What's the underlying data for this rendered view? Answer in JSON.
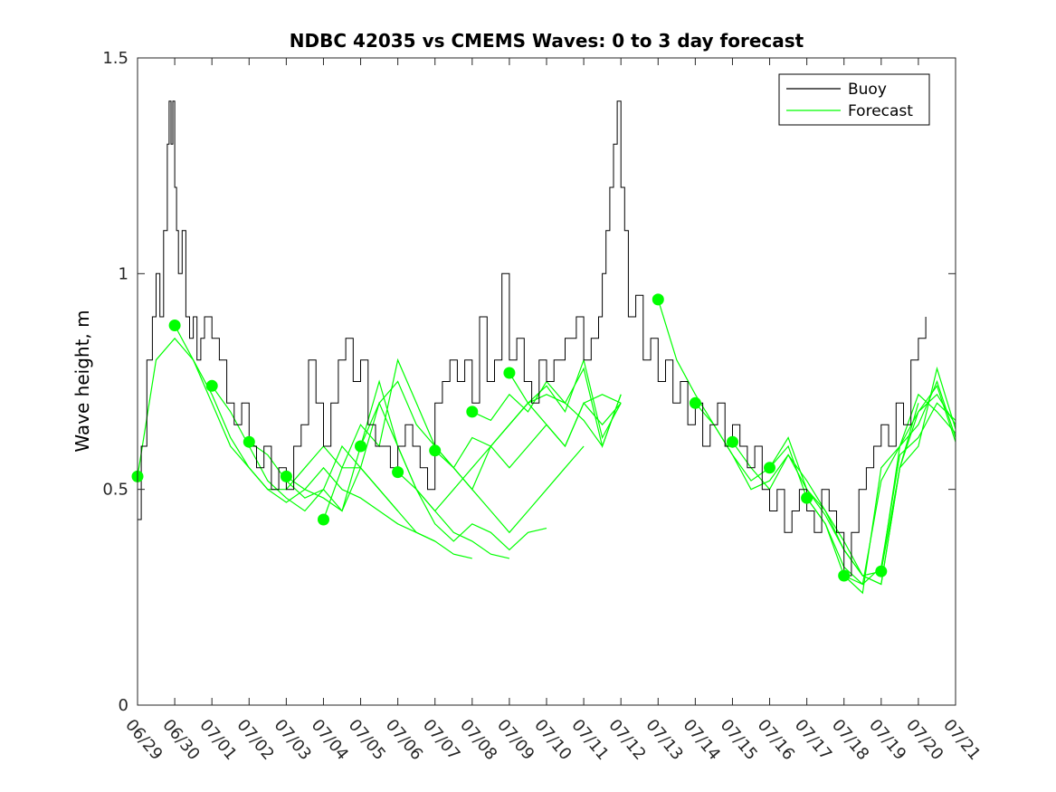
{
  "chart_data": {
    "type": "line",
    "title": "NDBC 42035 vs CMEMS Waves: 0 to 3 day forecast",
    "xlabel": "",
    "ylabel": "Wave height, m",
    "ylim": [
      0,
      1.5
    ],
    "xlim_days": [
      0,
      22
    ],
    "x_tick_labels": [
      "06/29",
      "06/30",
      "07/01",
      "07/02",
      "07/03",
      "07/04",
      "07/05",
      "07/06",
      "07/07",
      "07/08",
      "07/09",
      "07/10",
      "07/11",
      "07/12",
      "07/13",
      "07/14",
      "07/15",
      "07/16",
      "07/17",
      "07/18",
      "07/19",
      "07/20",
      "07/21"
    ],
    "y_ticks": [
      0,
      0.5,
      1,
      1.5
    ],
    "y_tick_labels": [
      "0",
      "0.5",
      "1",
      "1.5"
    ],
    "legend_position": "top-right",
    "colors": {
      "buoy": "#000000",
      "forecast": "#00ff00"
    },
    "series": [
      {
        "name": "Buoy",
        "x": [
          0,
          0.1,
          0.25,
          0.4,
          0.5,
          0.6,
          0.7,
          0.8,
          0.85,
          0.9,
          0.95,
          1.0,
          1.05,
          1.1,
          1.2,
          1.3,
          1.4,
          1.5,
          1.6,
          1.7,
          1.8,
          2.0,
          2.2,
          2.4,
          2.6,
          2.8,
          3.0,
          3.2,
          3.4,
          3.6,
          3.8,
          4.0,
          4.2,
          4.4,
          4.6,
          4.8,
          5.0,
          5.2,
          5.4,
          5.6,
          5.8,
          6.0,
          6.2,
          6.4,
          6.6,
          6.8,
          7.0,
          7.2,
          7.4,
          7.6,
          7.8,
          8.0,
          8.2,
          8.4,
          8.6,
          8.8,
          9.0,
          9.2,
          9.4,
          9.6,
          9.8,
          10.0,
          10.2,
          10.4,
          10.6,
          10.8,
          11.0,
          11.2,
          11.5,
          11.8,
          12.0,
          12.2,
          12.4,
          12.5,
          12.6,
          12.7,
          12.8,
          12.9,
          13.0,
          13.1,
          13.2,
          13.4,
          13.6,
          13.8,
          14.0,
          14.2,
          14.4,
          14.6,
          14.8,
          15.0,
          15.2,
          15.4,
          15.6,
          15.8,
          16.0,
          16.2,
          16.4,
          16.6,
          16.8,
          17.0,
          17.2,
          17.4,
          17.6,
          17.8,
          18.0,
          18.2,
          18.4,
          18.6,
          18.8,
          19.0,
          19.2,
          19.4,
          19.6,
          19.8,
          20.0,
          20.2,
          20.4,
          20.6,
          20.8,
          21.0,
          21.2
        ],
        "y": [
          0.43,
          0.6,
          0.8,
          0.9,
          1.0,
          0.9,
          1.1,
          1.3,
          1.4,
          1.3,
          1.4,
          1.2,
          1.1,
          1.0,
          1.1,
          0.9,
          0.85,
          0.9,
          0.8,
          0.85,
          0.9,
          0.85,
          0.8,
          0.7,
          0.65,
          0.7,
          0.6,
          0.55,
          0.6,
          0.5,
          0.55,
          0.5,
          0.6,
          0.65,
          0.8,
          0.7,
          0.6,
          0.7,
          0.8,
          0.85,
          0.75,
          0.8,
          0.65,
          0.6,
          0.6,
          0.55,
          0.6,
          0.65,
          0.6,
          0.55,
          0.5,
          0.7,
          0.75,
          0.8,
          0.75,
          0.8,
          0.7,
          0.9,
          0.75,
          0.8,
          1.0,
          0.8,
          0.85,
          0.75,
          0.7,
          0.8,
          0.75,
          0.8,
          0.85,
          0.9,
          0.8,
          0.85,
          0.9,
          1.0,
          1.1,
          1.2,
          1.3,
          1.4,
          1.2,
          1.1,
          0.9,
          0.95,
          0.8,
          0.85,
          0.75,
          0.8,
          0.7,
          0.75,
          0.65,
          0.7,
          0.6,
          0.65,
          0.7,
          0.6,
          0.65,
          0.6,
          0.55,
          0.6,
          0.5,
          0.45,
          0.5,
          0.4,
          0.45,
          0.5,
          0.45,
          0.4,
          0.5,
          0.45,
          0.4,
          0.3,
          0.4,
          0.5,
          0.55,
          0.6,
          0.65,
          0.6,
          0.7,
          0.65,
          0.8,
          0.85,
          0.9
        ]
      }
    ],
    "forecast_runs": [
      {
        "x": [
          0,
          0.5,
          1.0,
          1.5,
          2.0,
          2.5,
          3.0,
          3.5,
          4.0,
          4.5,
          5.0,
          5.5,
          6.0,
          6.5,
          7.0
        ],
        "y": [
          0.53,
          0.8,
          0.85,
          0.8,
          0.7,
          0.6,
          0.55,
          0.5,
          0.5,
          0.55,
          0.6,
          0.55,
          0.55,
          0.5,
          0.45
        ]
      },
      {
        "x": [
          1.0,
          1.5,
          2.0,
          2.5,
          3.0,
          3.5,
          4.0,
          4.5,
          5.0,
          5.5,
          6.0,
          6.5,
          7.0,
          7.5,
          8.0
        ],
        "y": [
          0.88,
          0.8,
          0.72,
          0.62,
          0.55,
          0.5,
          0.47,
          0.5,
          0.55,
          0.5,
          0.48,
          0.45,
          0.42,
          0.4,
          0.38
        ]
      },
      {
        "x": [
          2.0,
          2.5,
          3.0,
          3.5,
          4.0,
          4.5,
          5.0,
          5.5,
          6.0,
          6.5,
          7.0,
          7.5,
          8.0,
          8.5,
          9.0
        ],
        "y": [
          0.74,
          0.68,
          0.6,
          0.52,
          0.48,
          0.45,
          0.5,
          0.6,
          0.55,
          0.5,
          0.45,
          0.4,
          0.38,
          0.35,
          0.34
        ]
      },
      {
        "x": [
          3.0,
          3.5,
          4.0,
          4.5,
          5.0,
          5.5,
          6.0,
          6.5,
          7.0,
          7.5,
          8.0,
          8.5,
          9.0,
          9.5,
          10.0
        ],
        "y": [
          0.61,
          0.58,
          0.52,
          0.48,
          0.5,
          0.45,
          0.55,
          0.7,
          0.6,
          0.5,
          0.45,
          0.4,
          0.38,
          0.35,
          0.34
        ]
      },
      {
        "x": [
          4.0,
          4.5,
          5.0,
          5.5,
          6.0,
          6.5,
          7.0,
          7.5,
          8.0,
          8.5,
          9.0,
          9.5,
          10.0,
          10.5,
          11.0
        ],
        "y": [
          0.53,
          0.5,
          0.48,
          0.45,
          0.6,
          0.75,
          0.6,
          0.5,
          0.42,
          0.38,
          0.42,
          0.4,
          0.36,
          0.4,
          0.41
        ]
      },
      {
        "x": [
          5.0,
          5.5,
          6.0,
          6.5,
          7.0,
          7.5,
          8.0,
          8.5,
          9.0,
          9.5,
          10.0,
          10.5,
          11.0,
          11.5,
          12.0
        ],
        "y": [
          0.43,
          0.55,
          0.65,
          0.6,
          0.8,
          0.7,
          0.6,
          0.55,
          0.5,
          0.45,
          0.4,
          0.45,
          0.5,
          0.55,
          0.6
        ]
      },
      {
        "x": [
          6.0,
          6.5,
          7.0,
          7.5,
          8.0,
          8.5,
          9.0,
          9.5,
          10.0,
          10.5,
          11.0,
          11.5,
          12.0,
          12.5,
          13.0
        ],
        "y": [
          0.6,
          0.7,
          0.75,
          0.65,
          0.6,
          0.55,
          0.5,
          0.6,
          0.55,
          0.6,
          0.65,
          0.6,
          0.7,
          0.65,
          0.7
        ]
      },
      {
        "x": [
          7.0,
          7.5,
          8.0,
          8.5,
          9.0,
          9.5,
          10.0,
          10.5,
          11.0,
          11.5,
          12.0,
          12.5,
          13.0
        ],
        "y": [
          0.54,
          0.5,
          0.45,
          0.5,
          0.55,
          0.6,
          0.65,
          0.7,
          0.65,
          0.6,
          0.7,
          0.72,
          0.7
        ]
      },
      {
        "x": [
          8.0,
          8.5,
          9.0,
          9.5,
          10.0,
          10.5,
          11.0,
          11.5,
          12.0,
          12.5,
          13.0
        ],
        "y": [
          0.59,
          0.55,
          0.62,
          0.6,
          0.65,
          0.7,
          0.72,
          0.7,
          0.66,
          0.6,
          0.72
        ]
      },
      {
        "x": [
          9.0,
          9.5,
          10.0,
          10.5,
          11.0,
          11.5,
          12.0,
          12.5,
          13.0
        ],
        "y": [
          0.68,
          0.66,
          0.72,
          0.68,
          0.75,
          0.7,
          0.78,
          0.6,
          0.72
        ]
      },
      {
        "x": [
          10.0,
          10.5,
          11.0,
          11.5,
          12.0,
          12.5,
          13.0
        ],
        "y": [
          0.77,
          0.7,
          0.74,
          0.68,
          0.8,
          0.62,
          0.7
        ]
      },
      {
        "x": [
          14.0,
          14.5,
          15.0,
          15.5,
          16.0,
          16.5,
          17.0,
          17.5,
          18.0,
          18.5,
          19.0,
          19.5,
          20.0,
          20.5,
          21.0
        ],
        "y": [
          0.94,
          0.8,
          0.72,
          0.65,
          0.58,
          0.52,
          0.55,
          0.62,
          0.5,
          0.45,
          0.38,
          0.3,
          0.28,
          0.55,
          0.7
        ]
      },
      {
        "x": [
          15.0,
          15.5,
          16.0,
          16.5,
          17.0,
          17.5,
          18.0,
          18.5,
          19.0,
          19.5,
          20.0,
          20.5,
          21.0,
          21.5,
          22.0
        ],
        "y": [
          0.7,
          0.65,
          0.58,
          0.5,
          0.52,
          0.58,
          0.5,
          0.44,
          0.36,
          0.3,
          0.28,
          0.55,
          0.68,
          0.72,
          0.65
        ]
      },
      {
        "x": [
          16.0,
          16.5,
          17.0,
          17.5,
          18.0,
          18.5,
          19.0,
          19.5,
          20.0,
          20.5,
          21.0,
          21.5,
          22.0
        ],
        "y": [
          0.61,
          0.55,
          0.5,
          0.58,
          0.52,
          0.45,
          0.36,
          0.3,
          0.31,
          0.6,
          0.65,
          0.75,
          0.62
        ]
      },
      {
        "x": [
          17.0,
          17.5,
          18.0,
          18.5,
          19.0,
          19.5,
          20.0,
          20.5,
          21.0,
          21.5,
          22.0
        ],
        "y": [
          0.55,
          0.6,
          0.48,
          0.42,
          0.32,
          0.28,
          0.32,
          0.58,
          0.62,
          0.7,
          0.66
        ]
      },
      {
        "x": [
          18.0,
          18.5,
          19.0,
          19.5,
          20.0,
          20.5,
          21.0,
          21.5,
          22.0
        ],
        "y": [
          0.48,
          0.42,
          0.3,
          0.26,
          0.55,
          0.6,
          0.72,
          0.68,
          0.63
        ]
      },
      {
        "x": [
          19.0,
          19.5,
          20.0,
          20.5,
          21.0,
          21.5,
          22.0
        ],
        "y": [
          0.3,
          0.28,
          0.52,
          0.6,
          0.68,
          0.74,
          0.61
        ]
      },
      {
        "x": [
          20.0,
          20.5,
          21.0,
          21.5,
          22.0
        ],
        "y": [
          0.31,
          0.55,
          0.6,
          0.78,
          0.64
        ]
      }
    ],
    "forecast_markers": {
      "x": [
        0,
        1,
        2,
        3,
        4,
        5,
        6,
        7,
        8,
        9,
        10,
        14,
        15,
        16,
        17,
        18,
        19,
        20
      ],
      "y": [
        0.53,
        0.88,
        0.74,
        0.61,
        0.53,
        0.43,
        0.6,
        0.54,
        0.59,
        0.68,
        0.77,
        0.94,
        0.7,
        0.61,
        0.55,
        0.48,
        0.3,
        0.31
      ]
    }
  }
}
